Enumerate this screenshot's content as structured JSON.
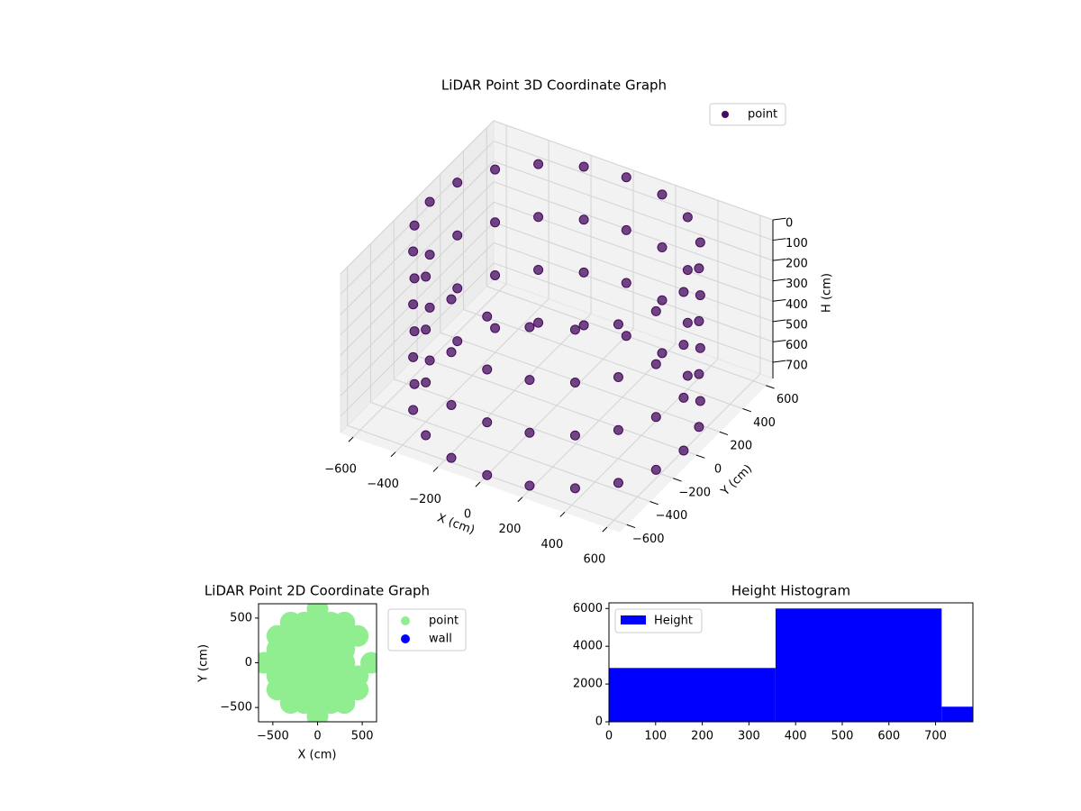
{
  "chart_data": [
    {
      "type": "scatter3d",
      "title": "LiDAR Point 3D Coordinate Graph",
      "x_label": "X (cm)",
      "y_label": "Y (cm)",
      "z_label": "H (cm)",
      "legend": "upper right",
      "series": [
        {
          "name": "point",
          "color": "#450a5e",
          "x": [
            600,
            571,
            485,
            353,
            185,
            0,
            -185,
            -353,
            -485,
            -571,
            -600,
            -571,
            -485,
            -353,
            -185,
            0,
            185,
            353,
            485,
            571,
            600,
            571,
            485,
            353,
            185,
            0,
            -185,
            -353,
            -485,
            -571,
            -600,
            -571,
            -485,
            -353,
            -185,
            0,
            185,
            353,
            485,
            571,
            600,
            571,
            485,
            353,
            185,
            0,
            -185,
            -353,
            -485,
            -571,
            -600,
            -571,
            -485,
            -353,
            -185,
            0,
            185,
            353,
            485,
            571,
            600,
            571,
            485,
            353,
            185,
            0,
            -185,
            -353,
            -485,
            -571,
            -600,
            -571,
            -485,
            -353,
            -185,
            0,
            185,
            353,
            485,
            571
          ],
          "y": [
            0,
            185,
            353,
            485,
            571,
            600,
            571,
            485,
            353,
            185,
            0,
            -185,
            -353,
            -485,
            -571,
            -600,
            -571,
            -485,
            -353,
            -185,
            0,
            185,
            353,
            485,
            571,
            600,
            571,
            485,
            353,
            185,
            0,
            -185,
            -353,
            -485,
            -571,
            -600,
            -571,
            -485,
            -353,
            -185,
            0,
            185,
            353,
            485,
            571,
            600,
            571,
            485,
            353,
            185,
            0,
            -185,
            -353,
            -485,
            -571,
            -600,
            -571,
            -485,
            -353,
            -185,
            0,
            185,
            353,
            485,
            571,
            600,
            571,
            485,
            353,
            185,
            0,
            -185,
            -353,
            -485,
            -571,
            -600,
            -571,
            -485,
            -353,
            -185
          ],
          "z": [
            0,
            0,
            0,
            0,
            0,
            0,
            0,
            0,
            0,
            0,
            0,
            0,
            0,
            0,
            0,
            0,
            0,
            0,
            0,
            0,
            260,
            260,
            260,
            260,
            260,
            260,
            260,
            260,
            260,
            260,
            260,
            260,
            260,
            260,
            260,
            260,
            260,
            260,
            260,
            260,
            520,
            520,
            520,
            520,
            520,
            520,
            520,
            520,
            520,
            520,
            520,
            520,
            520,
            520,
            520,
            520,
            520,
            520,
            520,
            520,
            780,
            780,
            780,
            780,
            780,
            780,
            780,
            780,
            780,
            780,
            780,
            780,
            780,
            780,
            780,
            780,
            780,
            780,
            780,
            780
          ]
        }
      ],
      "xlim": [
        -660,
        660
      ],
      "ylim": [
        -660,
        660
      ],
      "zlim": [
        780,
        0
      ],
      "xticks": [
        {
          "value": -600,
          "label": "−600"
        },
        {
          "value": -400,
          "label": "−400"
        },
        {
          "value": -200,
          "label": "−200"
        },
        0,
        200,
        400,
        600
      ],
      "yticks": [
        {
          "value": -600,
          "label": "−600"
        },
        {
          "value": -400,
          "label": "−400"
        },
        {
          "value": -200,
          "label": "−200"
        },
        0,
        200,
        400,
        600
      ],
      "zticks": [
        0,
        100,
        200,
        300,
        400,
        500,
        600,
        700
      ],
      "grid": true
    },
    {
      "type": "scatter",
      "title": "LiDAR Point 2D Coordinate Graph",
      "x_label": "X (cm)",
      "y_label": "Y (cm)",
      "legend": "outside right",
      "series": [
        {
          "name": "point",
          "color": "#90ee90",
          "x": [
            -600,
            -450,
            -450,
            -450,
            -450,
            -450,
            -300,
            -300,
            -300,
            -300,
            -300,
            -300,
            -300,
            -150,
            -150,
            -150,
            -150,
            -150,
            -150,
            -150,
            0,
            0,
            0,
            0,
            0,
            0,
            0,
            0,
            0,
            150,
            150,
            150,
            150,
            150,
            150,
            150,
            300,
            300,
            300,
            300,
            300,
            300,
            300,
            450,
            450,
            450,
            600
          ],
          "y": [
            0,
            -300,
            -150,
            0,
            150,
            300,
            -450,
            -300,
            -150,
            0,
            150,
            300,
            450,
            -450,
            -300,
            -150,
            0,
            150,
            300,
            450,
            -600,
            -450,
            -300,
            -150,
            0,
            150,
            300,
            450,
            600,
            -450,
            -300,
            -150,
            0,
            150,
            300,
            450,
            -450,
            -300,
            -150,
            0,
            150,
            300,
            450,
            -300,
            -150,
            300,
            0
          ]
        },
        {
          "name": "wall",
          "color": "#0000ff",
          "x": [],
          "y": []
        }
      ],
      "xlim": [
        -660,
        660
      ],
      "ylim": [
        -660,
        660
      ],
      "xticks": [
        {
          "value": -500,
          "label": "−500"
        },
        0,
        500
      ],
      "yticks": [
        {
          "value": -500,
          "label": "−500"
        },
        0,
        500
      ]
    },
    {
      "type": "histogram",
      "title": "Height Histogram",
      "legend": "upper left",
      "series": [
        {
          "name": "Height",
          "color": "#0000ff",
          "bins": [
            0,
            357,
            713,
            780
          ],
          "values": [
            2850,
            6000,
            800
          ]
        }
      ],
      "xlim": [
        0,
        780
      ],
      "ylim": [
        0,
        6300
      ],
      "xticks": [
        0,
        100,
        200,
        300,
        400,
        500,
        600,
        700
      ],
      "yticks": [
        0,
        2000,
        4000,
        6000
      ]
    }
  ]
}
